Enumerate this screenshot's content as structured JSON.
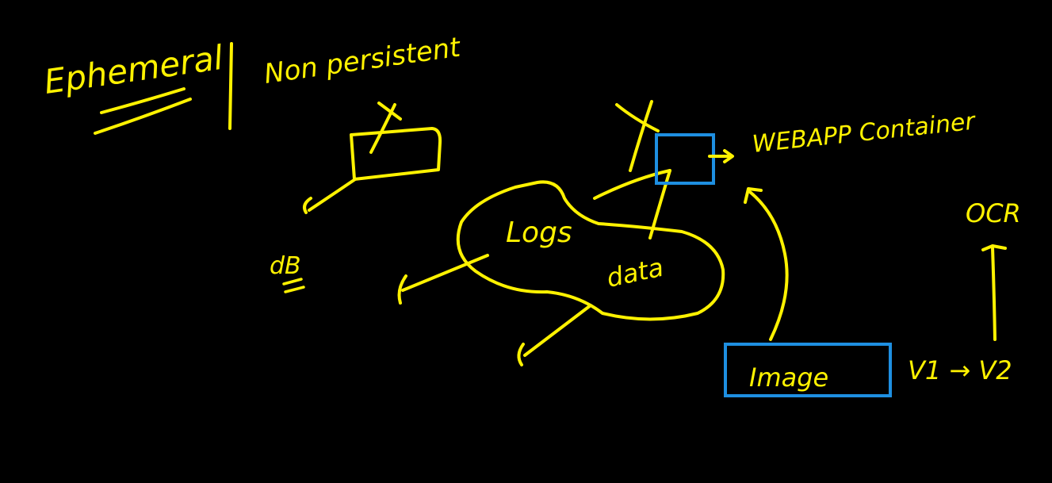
{
  "canvas": {
    "background": "#000000",
    "ink_color": "#FFF200",
    "box_color": "#1E8FE1"
  },
  "labels": {
    "ephemeral": "Ephemeral",
    "non_persistent": "Non persistent",
    "db": "dB",
    "logs": "Logs",
    "data": "data",
    "webapp_container": "WEBAPP Container",
    "image": "Image",
    "ocr": "OCR",
    "version_change": "V1 → V2"
  }
}
